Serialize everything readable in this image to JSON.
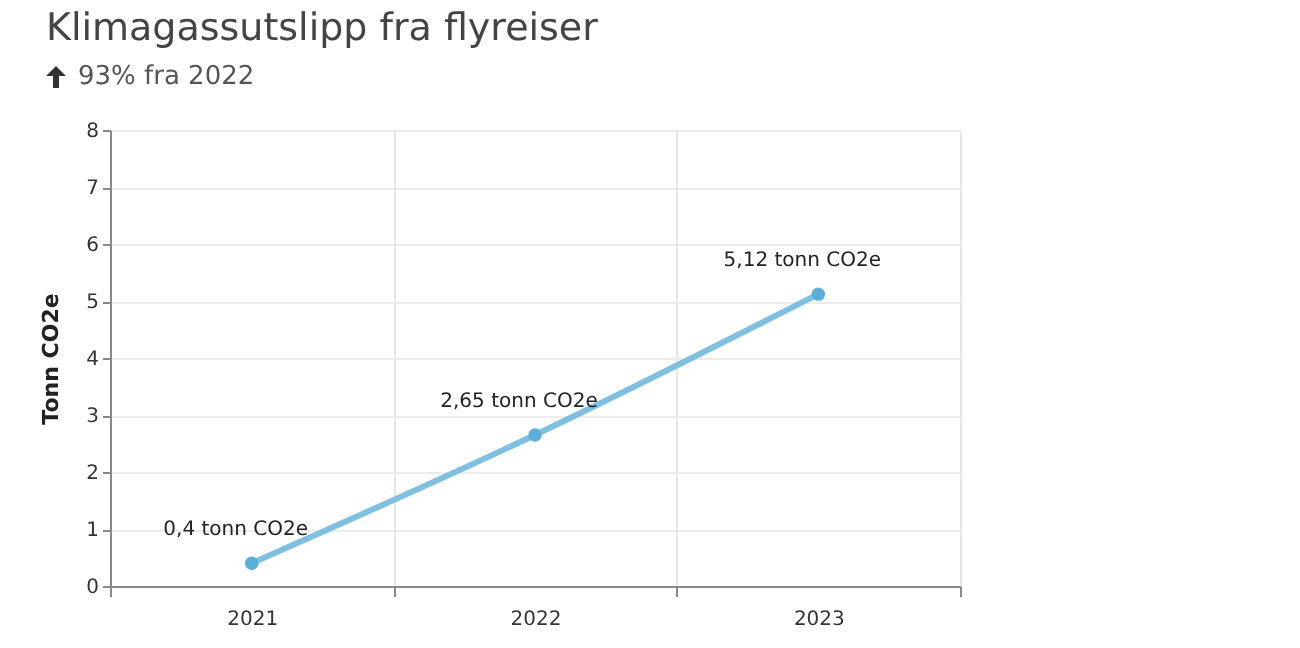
{
  "chart_data": {
    "type": "line",
    "title": "Klimagassutslipp fra flyreiser",
    "subtitle": "93% fra 2022",
    "ylabel": "Tonn CO2e",
    "categories": [
      "2021",
      "2022",
      "2023"
    ],
    "series": [
      {
        "color": "#7fc0e0",
        "values": [
          0.4,
          2.65,
          5.12
        ],
        "value_labels": [
          "0,4 tonn CO2e",
          "2,65 tonn CO2e",
          "5,12 tonn CO2e"
        ]
      }
    ],
    "ylim": [
      0,
      8
    ],
    "yticks": [
      0,
      1,
      2,
      3,
      4,
      5,
      6,
      7,
      8
    ],
    "grid": true,
    "marker": "circle",
    "line_style": "solid"
  }
}
